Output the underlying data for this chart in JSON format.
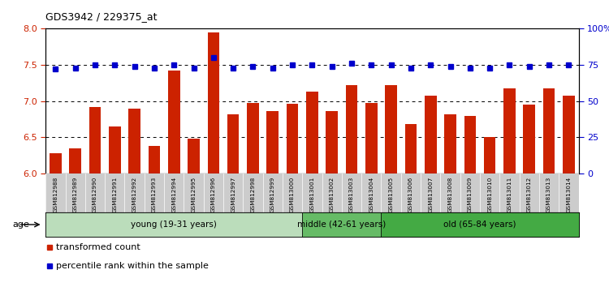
{
  "title": "GDS3942 / 229375_at",
  "samples": [
    "GSM812988",
    "GSM812989",
    "GSM812990",
    "GSM812991",
    "GSM812992",
    "GSM812993",
    "GSM812994",
    "GSM812995",
    "GSM812996",
    "GSM812997",
    "GSM812998",
    "GSM812999",
    "GSM813000",
    "GSM813001",
    "GSM813002",
    "GSM813003",
    "GSM813004",
    "GSM813005",
    "GSM813006",
    "GSM813007",
    "GSM813008",
    "GSM813009",
    "GSM813010",
    "GSM813011",
    "GSM813012",
    "GSM813013",
    "GSM813014"
  ],
  "bar_values": [
    6.28,
    6.35,
    6.92,
    6.65,
    6.9,
    6.38,
    7.42,
    6.48,
    7.95,
    6.82,
    6.97,
    6.86,
    6.96,
    7.13,
    6.86,
    7.22,
    6.97,
    7.22,
    6.68,
    7.08,
    6.82,
    6.8,
    6.5,
    7.18,
    6.95,
    7.18,
    7.08
  ],
  "dot_values": [
    72,
    73,
    75,
    75,
    74,
    73,
    75,
    73,
    80,
    73,
    74,
    73,
    75,
    75,
    74,
    76,
    75,
    75,
    73,
    75,
    74,
    73,
    73,
    75,
    74,
    75,
    75
  ],
  "ylim_left": [
    6.0,
    8.0
  ],
  "ylim_right": [
    0,
    100
  ],
  "yticks_left": [
    6.0,
    6.5,
    7.0,
    7.5,
    8.0
  ],
  "yticks_right": [
    0,
    25,
    50,
    75,
    100
  ],
  "ytick_labels_right": [
    "0",
    "25",
    "50",
    "75",
    "100%"
  ],
  "dotted_lines": [
    6.5,
    7.0,
    7.5
  ],
  "bar_color": "#CC2200",
  "dot_color": "#0000CC",
  "xtick_bg": "#CCCCCC",
  "age_groups": [
    {
      "label": "young (19-31 years)",
      "start": 0,
      "end": 13,
      "color": "#BBDDBB"
    },
    {
      "label": "middle (42-61 years)",
      "start": 13,
      "end": 17,
      "color": "#66BB66"
    },
    {
      "label": "old (65-84 years)",
      "start": 17,
      "end": 27,
      "color": "#44AA44"
    }
  ],
  "legend_red": "transformed count",
  "legend_blue": "percentile rank within the sample",
  "title_fontsize": 9
}
